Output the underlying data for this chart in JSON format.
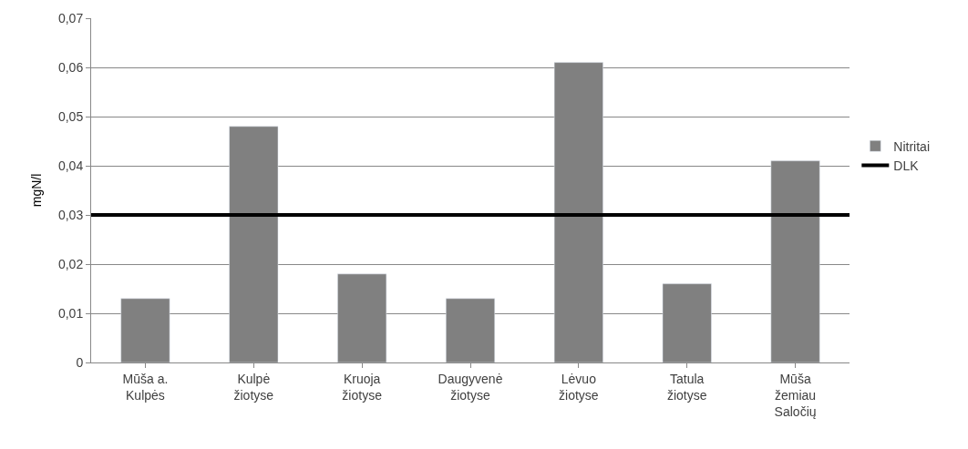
{
  "chart_data": {
    "type": "bar",
    "ylabel": "mgN/l",
    "categories": [
      "Mūša a. Kulpės",
      "Kulpė žiotyse",
      "Kruoja žiotyse",
      "Daugyvenė žiotyse",
      "Lėvuo žiotyse",
      "Tatula žiotyse",
      "Mūša žemiau Saločių"
    ],
    "series": [
      {
        "name": "Nitritai",
        "color": "#808080",
        "values": [
          0.013,
          0.048,
          0.018,
          0.013,
          0.061,
          0.016,
          0.041
        ]
      }
    ],
    "ylim": [
      0,
      0.07
    ],
    "yticks": [
      0,
      {
        "value": 0.01,
        "label": "0,01"
      },
      {
        "value": 0.02,
        "label": "0,02"
      },
      {
        "value": 0.03,
        "label": "0,03"
      },
      {
        "value": 0.04,
        "label": "0,04"
      },
      {
        "value": 0.05,
        "label": "0,05"
      },
      {
        "value": 0.06,
        "label": "0,06"
      },
      {
        "value": 0.07,
        "label": "0,07"
      }
    ],
    "ref_lines": [
      {
        "axis": "y",
        "value": 0.03,
        "label": "DLK",
        "color": "#000000"
      }
    ],
    "grid": "y",
    "legend": "right"
  }
}
